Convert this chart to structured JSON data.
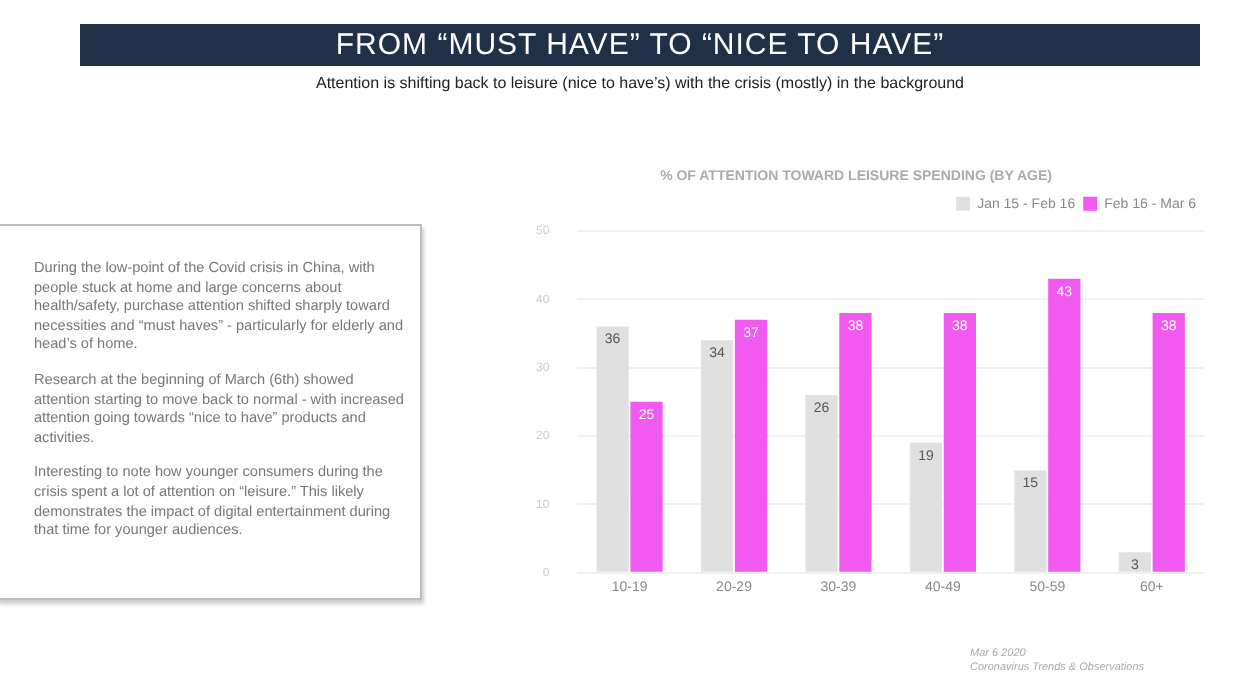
{
  "chart_data": {
    "type": "bar",
    "title": "% OF ATTENTION TOWARD LEISURE SPENDING (BY AGE)",
    "categories": [
      "10-19",
      "20-29",
      "30-39",
      "40-49",
      "50-59",
      "60+"
    ],
    "series": [
      {
        "name": "Jan 15 - Feb 16",
        "color": "#e0e0e0",
        "values": [
          36,
          34,
          26,
          19,
          15,
          3
        ]
      },
      {
        "name": "Feb 16 - Mar 6",
        "color": "#f05af0",
        "values": [
          25,
          37,
          38,
          38,
          43,
          38
        ]
      }
    ],
    "ylim": [
      0,
      50
    ],
    "yticks": [
      0,
      10,
      20,
      30,
      40,
      50
    ],
    "grid": "y",
    "legend": "top right",
    "data_labels": true,
    "annotations": [
      "FROM “MUST HAVE” TO “NICE TO HAVE”",
      "Attention is shifting back to leisure (nice to have’s) with the crisis (mostly) in the background",
      "During the low-point of the Covid crisis in China, with people stuck at home and large concerns about health/safety, purchase attention shifted sharply toward necessities and “must haves” - particularly for elderly and head’s of home.",
      "Research at the beginning of March (6th) showed attention starting to move back to normal - with increased attention going towards “nice to have” products and activities.",
      "Interesting to note how younger consumers during the crisis spent a lot of attention on “leisure.” This likely demonstrates the impact of digital entertainment during that time for younger audiences.",
      "Mar 6 2020",
      "Coronavirus Trends & Observations"
    ]
  }
}
